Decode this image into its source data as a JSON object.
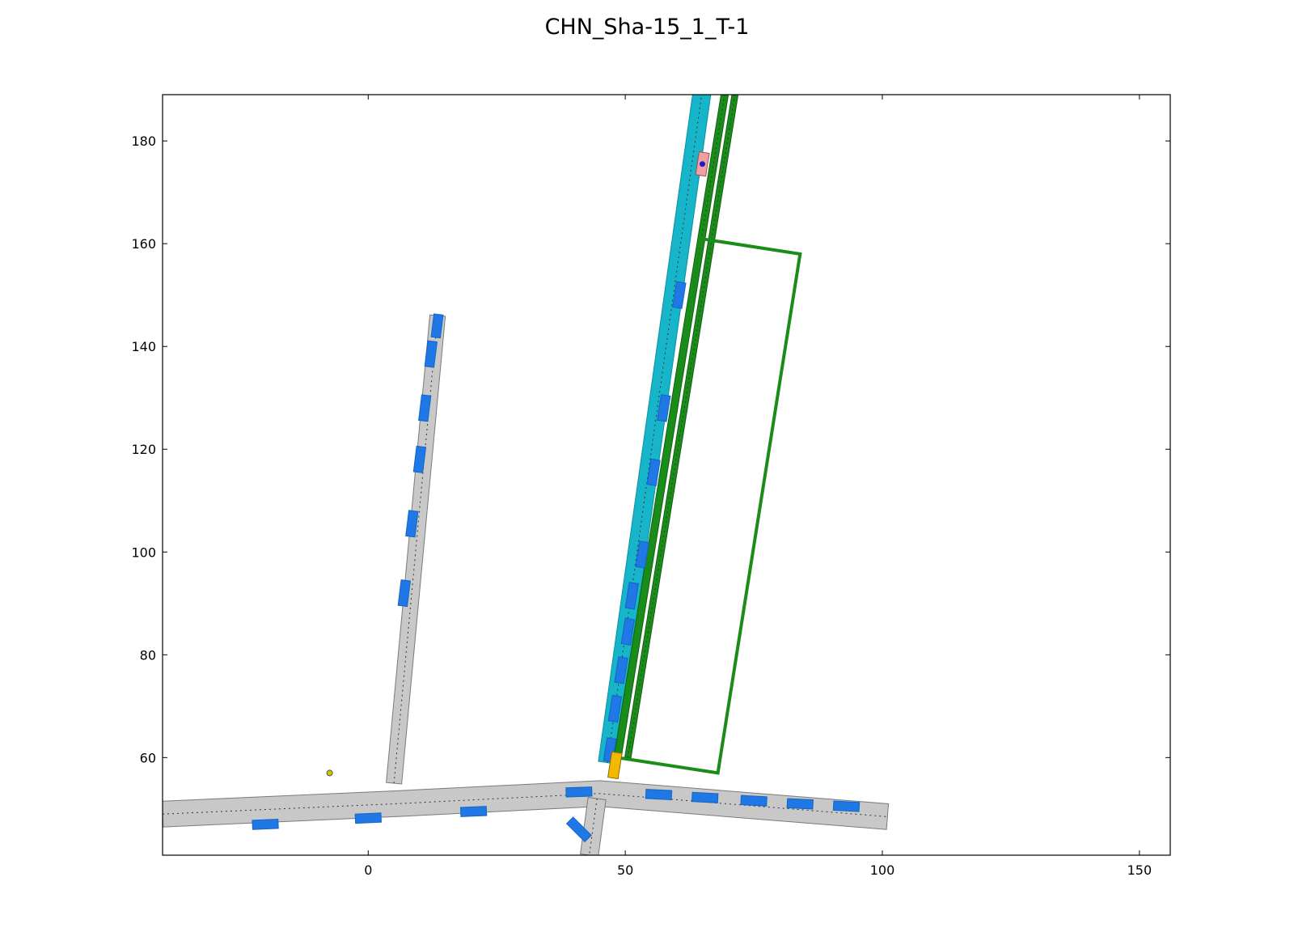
{
  "title": "CHN_Sha-15_1_T-1",
  "chart_data": {
    "type": "scatter",
    "title": "CHN_Sha-15_1_T-1",
    "xlabel": "",
    "ylabel": "",
    "xlim": [
      -40,
      156
    ],
    "ylim": [
      41,
      189
    ],
    "x_ticks": [
      0,
      50,
      100,
      150
    ],
    "y_ticks": [
      60,
      80,
      100,
      120,
      140,
      160,
      180
    ],
    "x_tick_labels": [
      "0",
      "50",
      "100",
      "150"
    ],
    "y_tick_labels": [
      "60",
      "80",
      "100",
      "120",
      "140",
      "160",
      "180"
    ],
    "grid": false,
    "legend": "none",
    "colors": {
      "road": "#c8c8c8",
      "road_edge": "#7a7a7a",
      "vehicle": "#1f78e5",
      "ego_lane": "#16b5c9",
      "goal_region": "#1a8c1a",
      "ego_vehicle": "#f0a0a0",
      "ego_marker": "#1a1ad0",
      "start_marker": "#f5b800",
      "small_point": "#c8c800"
    },
    "roads": [
      {
        "name": "west-east road",
        "centerline": [
          [
            -40,
            49
          ],
          [
            5,
            51
          ],
          [
            45,
            53
          ],
          [
            101,
            48.5
          ]
        ],
        "width": 5
      },
      {
        "name": "north branch",
        "centerline": [
          [
            5,
            55
          ],
          [
            13.5,
            146
          ]
        ],
        "width": 3
      },
      {
        "name": "south branch",
        "centerline": [
          [
            44.5,
            52
          ],
          [
            43,
            41
          ]
        ],
        "width": 3.5
      }
    ],
    "ego_lane": {
      "centerline": [
        [
          46.5,
          59
        ],
        [
          65,
          190
        ]
      ],
      "width": 3.5
    },
    "goal_lanes": [
      {
        "centerline": [
          [
            48.5,
            60
          ],
          [
            69.5,
            190
          ]
        ],
        "width": 1.4
      },
      {
        "centerline": [
          [
            50.5,
            60
          ],
          [
            71.5,
            190
          ]
        ],
        "width": 1.2
      }
    ],
    "goal_region": [
      [
        64.5,
        161
      ],
      [
        84,
        158
      ],
      [
        68,
        57
      ],
      [
        48.5,
        60
      ]
    ],
    "vehicles": [
      {
        "x": -20,
        "y": 47,
        "angle": 2.5,
        "length": 5,
        "width": 1.8
      },
      {
        "x": 0,
        "y": 48.2,
        "angle": 2.5,
        "length": 5,
        "width": 1.8
      },
      {
        "x": 20.5,
        "y": 49.5,
        "angle": 2.5,
        "length": 5,
        "width": 1.8
      },
      {
        "x": 41,
        "y": 53.3,
        "angle": 2,
        "length": 5,
        "width": 1.8
      },
      {
        "x": 41,
        "y": 46,
        "angle": -45,
        "length": 5,
        "width": 1.8
      },
      {
        "x": 56.5,
        "y": 52.8,
        "angle": -3,
        "length": 5,
        "width": 1.8
      },
      {
        "x": 65.5,
        "y": 52.2,
        "angle": -3,
        "length": 5,
        "width": 1.8
      },
      {
        "x": 75,
        "y": 51.6,
        "angle": -3,
        "length": 5,
        "width": 1.8
      },
      {
        "x": 84,
        "y": 51,
        "angle": -3,
        "length": 5,
        "width": 1.8
      },
      {
        "x": 93,
        "y": 50.5,
        "angle": -3,
        "length": 5,
        "width": 1.8
      },
      {
        "x": 7,
        "y": 92,
        "angle": 83,
        "length": 5,
        "width": 1.8
      },
      {
        "x": 8.5,
        "y": 105.5,
        "angle": 83,
        "length": 5,
        "width": 1.8
      },
      {
        "x": 10,
        "y": 118,
        "angle": 83,
        "length": 5,
        "width": 1.8
      },
      {
        "x": 11,
        "y": 128,
        "angle": 83,
        "length": 5,
        "width": 1.8
      },
      {
        "x": 12.2,
        "y": 138.5,
        "angle": 83,
        "length": 5,
        "width": 1.8
      },
      {
        "x": 13.4,
        "y": 144,
        "angle": 83,
        "length": 4.5,
        "width": 1.8
      },
      {
        "x": 47,
        "y": 61.5,
        "angle": 81,
        "length": 4.5,
        "width": 1.8
      },
      {
        "x": 48,
        "y": 69.5,
        "angle": 81,
        "length": 5,
        "width": 1.8
      },
      {
        "x": 49.2,
        "y": 77,
        "angle": 81,
        "length": 5,
        "width": 1.8
      },
      {
        "x": 50.5,
        "y": 84.5,
        "angle": 81,
        "length": 5,
        "width": 1.8
      },
      {
        "x": 51.3,
        "y": 91.5,
        "angle": 81,
        "length": 5,
        "width": 1.8
      },
      {
        "x": 53.3,
        "y": 99.5,
        "angle": 81,
        "length": 5,
        "width": 1.8
      },
      {
        "x": 55.5,
        "y": 115.5,
        "angle": 81,
        "length": 5,
        "width": 1.8
      },
      {
        "x": 57.5,
        "y": 128,
        "angle": 81,
        "length": 5,
        "width": 1.8
      },
      {
        "x": 60.5,
        "y": 150,
        "angle": 81,
        "length": 5,
        "width": 1.8
      }
    ],
    "ego_vehicle": {
      "x": 65,
      "y": 175.5,
      "angle": 81,
      "length": 4.5,
      "width": 2
    },
    "start_marker": {
      "x": 48,
      "y": 58.5,
      "angle": 81,
      "length": 5,
      "width": 2
    },
    "small_point": {
      "x": -7.5,
      "y": 57
    }
  }
}
